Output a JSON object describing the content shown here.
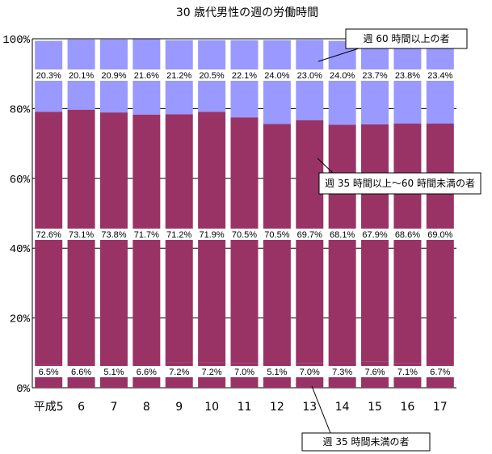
{
  "chart_data": {
    "type": "bar",
    "stacked": true,
    "title": "30 歳代男性の週の労働時間",
    "categories": [
      "平成5",
      "6",
      "7",
      "8",
      "9",
      "10",
      "11",
      "12",
      "13",
      "14",
      "15",
      "16",
      "17"
    ],
    "series": [
      {
        "key": "under35",
        "values": [
          6.5,
          6.6,
          5.1,
          6.6,
          7.2,
          7.2,
          7.0,
          5.1,
          7.0,
          7.3,
          7.6,
          7.1,
          6.7
        ],
        "labels": [
          "6.5%",
          "6.6%",
          "5.1%",
          "6.6%",
          "7.2%",
          "7.2%",
          "7.0%",
          "5.1%",
          "7.0%",
          "7.3%",
          "7.6%",
          "7.1%",
          "6.7%"
        ]
      },
      {
        "key": "35to60",
        "values": [
          72.6,
          73.1,
          73.8,
          71.7,
          71.2,
          71.9,
          70.5,
          70.5,
          69.7,
          68.1,
          67.9,
          68.6,
          69.0
        ],
        "labels": [
          "72.6%",
          "73.1%",
          "73.8%",
          "71.7%",
          "71.2%",
          "71.9%",
          "70.5%",
          "70.5%",
          "69.7%",
          "68.1%",
          "67.9%",
          "68.6%",
          "69.0%"
        ]
      },
      {
        "key": "over60",
        "values": [
          20.3,
          20.1,
          20.9,
          21.6,
          21.2,
          20.5,
          22.1,
          24.0,
          23.0,
          24.0,
          23.7,
          23.8,
          23.4
        ],
        "labels": [
          "20.3%",
          "20.1%",
          "20.9%",
          "21.6%",
          "21.2%",
          "20.5%",
          "22.1%",
          "24.0%",
          "23.0%",
          "24.0%",
          "23.7%",
          "23.8%",
          "23.4%"
        ]
      }
    ],
    "ylim": [
      0,
      100
    ],
    "yticks": [
      "0%",
      "20%",
      "40%",
      "60%",
      "80%",
      "100%"
    ],
    "grid": true,
    "annotations": [
      {
        "text": "週 60 時間以上の者",
        "series": "over60"
      },
      {
        "text": "週 35 時間以上～60 時間未満の者",
        "series": "35to60"
      },
      {
        "text": "週 35 時間未満の者",
        "series": "under35"
      }
    ]
  },
  "colors": {
    "under35": "#993366",
    "35to60": "#993366",
    "over60": "#9999ff",
    "grid": "#000000"
  }
}
